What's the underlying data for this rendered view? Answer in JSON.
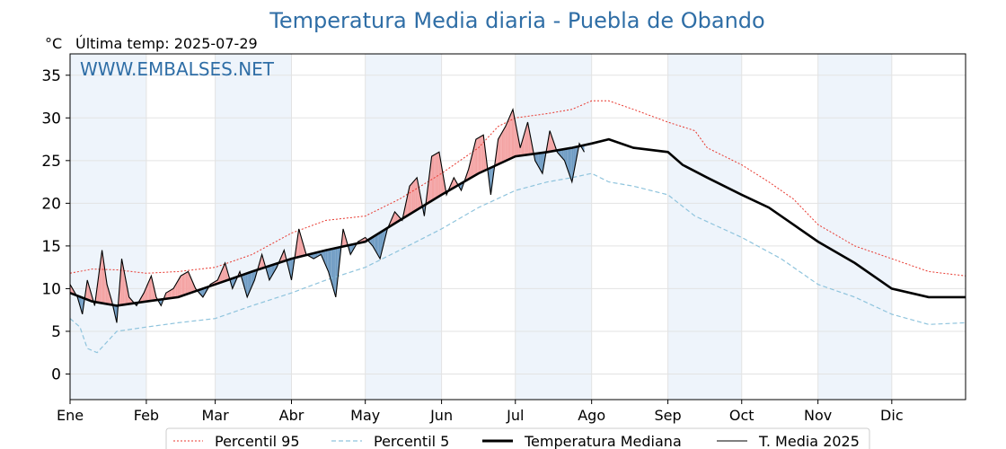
{
  "colors": {
    "title": "#2f6ea6",
    "watermark": "#2f6ea6",
    "p95": "#e8382f",
    "p5": "#8fc4dd",
    "median": "#000000",
    "current": "#000000",
    "above_fill": "#f4a3a3",
    "below_fill": "#6f9cc4",
    "month_band": "#eef4fb"
  },
  "chart_data": {
    "type": "line",
    "title": "Temperatura Media diaria - Puebla de Obando",
    "unit_label": "°C",
    "subtitle": "Última temp: 2025-07-29",
    "watermark": "WWW.EMBALSES.NET",
    "ylim": [
      -3,
      37.5
    ],
    "yticks": [
      0,
      5,
      10,
      15,
      20,
      25,
      30,
      35
    ],
    "xlim": [
      1,
      365
    ],
    "months": [
      {
        "label": "Ene",
        "day": 1
      },
      {
        "label": "Feb",
        "day": 32
      },
      {
        "label": "Mar",
        "day": 60
      },
      {
        "label": "Abr",
        "day": 91
      },
      {
        "label": "May",
        "day": 121
      },
      {
        "label": "Jun",
        "day": 152
      },
      {
        "label": "Jul",
        "day": 182
      },
      {
        "label": "Ago",
        "day": 213
      },
      {
        "label": "Sep",
        "day": 244
      },
      {
        "label": "Oct",
        "day": 274
      },
      {
        "label": "Nov",
        "day": 305
      },
      {
        "label": "Dic",
        "day": 335
      }
    ],
    "grid": true,
    "legend_position": "bottom-center",
    "series": [
      {
        "name": "Percentil 95",
        "style": "dotted",
        "x": [
          1,
          10,
          20,
          32,
          45,
          60,
          75,
          91,
          105,
          121,
          135,
          152,
          167,
          175,
          182,
          195,
          205,
          213,
          220,
          230,
          244,
          255,
          260,
          274,
          285,
          295,
          305,
          320,
          335,
          350,
          365
        ],
        "y": [
          11.8,
          12.3,
          12.2,
          11.8,
          12.0,
          12.5,
          14.0,
          16.5,
          18.0,
          18.5,
          20.5,
          23.5,
          26.5,
          29.0,
          30.0,
          30.5,
          31.0,
          32.0,
          32.0,
          31.0,
          29.5,
          28.5,
          26.5,
          24.5,
          22.5,
          20.5,
          17.5,
          15.0,
          13.5,
          12.0,
          11.5
        ]
      },
      {
        "name": "Percentil 5",
        "style": "dashed",
        "x": [
          1,
          5,
          8,
          12,
          20,
          32,
          45,
          60,
          75,
          91,
          105,
          121,
          135,
          152,
          167,
          182,
          195,
          205,
          213,
          220,
          230,
          244,
          255,
          274,
          290,
          305,
          320,
          335,
          350,
          365
        ],
        "y": [
          6.5,
          5.5,
          3.0,
          2.5,
          5.0,
          5.5,
          6.0,
          6.5,
          8.0,
          9.5,
          11.0,
          12.5,
          14.5,
          17.0,
          19.5,
          21.5,
          22.5,
          23.0,
          23.5,
          22.5,
          22.0,
          21.0,
          18.5,
          16.0,
          13.5,
          10.5,
          9.0,
          7.0,
          5.8,
          6.0
        ]
      },
      {
        "name": "Temperatura Mediana",
        "style": "solid-thick",
        "x": [
          1,
          10,
          20,
          32,
          45,
          60,
          75,
          91,
          105,
          121,
          135,
          152,
          167,
          182,
          195,
          205,
          213,
          220,
          230,
          244,
          250,
          260,
          274,
          285,
          295,
          305,
          320,
          335,
          350,
          365
        ],
        "y": [
          9.5,
          8.5,
          8.0,
          8.5,
          9.0,
          10.5,
          12.0,
          13.5,
          14.5,
          15.5,
          18.0,
          21.0,
          23.5,
          25.5,
          26.0,
          26.5,
          27.0,
          27.5,
          26.5,
          26.0,
          24.5,
          23.0,
          21.0,
          19.5,
          17.5,
          15.5,
          13.0,
          10.0,
          9.0,
          9.0
        ]
      },
      {
        "name": "T. Media 2025",
        "style": "solid-thin",
        "x": [
          1,
          4,
          6,
          8,
          11,
          14,
          16,
          18,
          20,
          22,
          25,
          28,
          31,
          34,
          36,
          38,
          40,
          43,
          46,
          49,
          52,
          55,
          58,
          61,
          64,
          67,
          70,
          73,
          76,
          79,
          82,
          85,
          88,
          91,
          94,
          97,
          100,
          103,
          106,
          109,
          112,
          115,
          118,
          121,
          124,
          127,
          130,
          133,
          136,
          139,
          142,
          145,
          148,
          151,
          154,
          157,
          160,
          163,
          166,
          169,
          172,
          175,
          178,
          181,
          184,
          187,
          190,
          193,
          196,
          199,
          202,
          205,
          208,
          210
        ],
        "y": [
          10.5,
          9.0,
          7.0,
          11.0,
          8.0,
          14.5,
          10.5,
          8.5,
          6.0,
          13.5,
          9.0,
          8.0,
          9.5,
          11.5,
          9.0,
          8.0,
          9.5,
          10.0,
          11.5,
          12.0,
          10.0,
          9.0,
          10.5,
          11.0,
          13.0,
          10.0,
          12.0,
          9.0,
          11.0,
          14.0,
          11.0,
          12.5,
          14.5,
          11.0,
          17.0,
          14.0,
          13.5,
          14.0,
          12.0,
          9.0,
          17.0,
          14.0,
          15.5,
          16.0,
          15.0,
          13.5,
          17.0,
          19.0,
          18.0,
          22.0,
          23.0,
          18.5,
          25.5,
          26.0,
          21.0,
          23.0,
          21.5,
          24.0,
          27.5,
          28.0,
          21.0,
          27.5,
          29.0,
          31.0,
          26.5,
          29.5,
          25.0,
          23.5,
          28.5,
          26.0,
          25.0,
          22.5,
          27.0,
          26.0
        ]
      }
    ],
    "axes_ticks_x": [
      "Ene",
      "Feb",
      "Mar",
      "Abr",
      "May",
      "Jun",
      "Jul",
      "Ago",
      "Sep",
      "Oct",
      "Nov",
      "Dic"
    ]
  },
  "legend": [
    {
      "label": "Percentil 95"
    },
    {
      "label": "Percentil 5"
    },
    {
      "label": "Temperatura Mediana"
    },
    {
      "label": "T. Media 2025"
    }
  ]
}
